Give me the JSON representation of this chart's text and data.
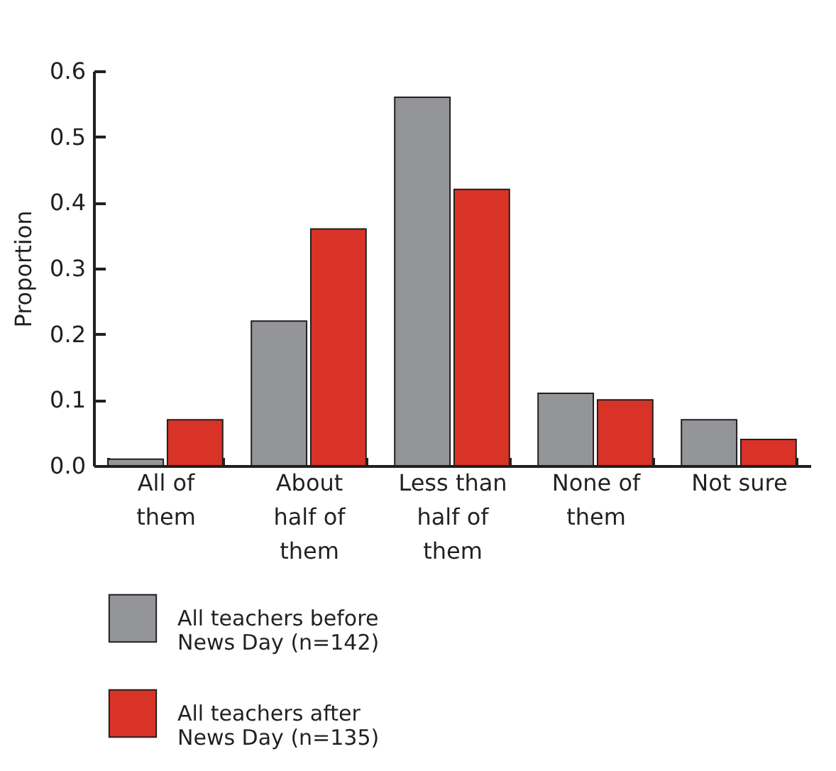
{
  "chart_data": {
    "type": "bar",
    "ylabel": "Proportion",
    "categories": [
      "All of them",
      "About half of them",
      "Less than half of them",
      "None of them",
      "Not sure"
    ],
    "series": [
      {
        "name": "All teachers before News Day (n=142)",
        "color": "#939598",
        "values": [
          0.01,
          0.22,
          0.56,
          0.11,
          0.07
        ]
      },
      {
        "name": "All teachers after News Day (n=135)",
        "color": "#d93327",
        "values": [
          0.07,
          0.36,
          0.42,
          0.1,
          0.04
        ]
      }
    ],
    "ylim": [
      0,
      0.6
    ],
    "yticks": [
      {
        "value": 0,
        "label": "0.0"
      },
      0.1,
      0.2,
      0.3,
      0.4,
      0.5,
      0.6
    ],
    "legend": "bottom left"
  }
}
